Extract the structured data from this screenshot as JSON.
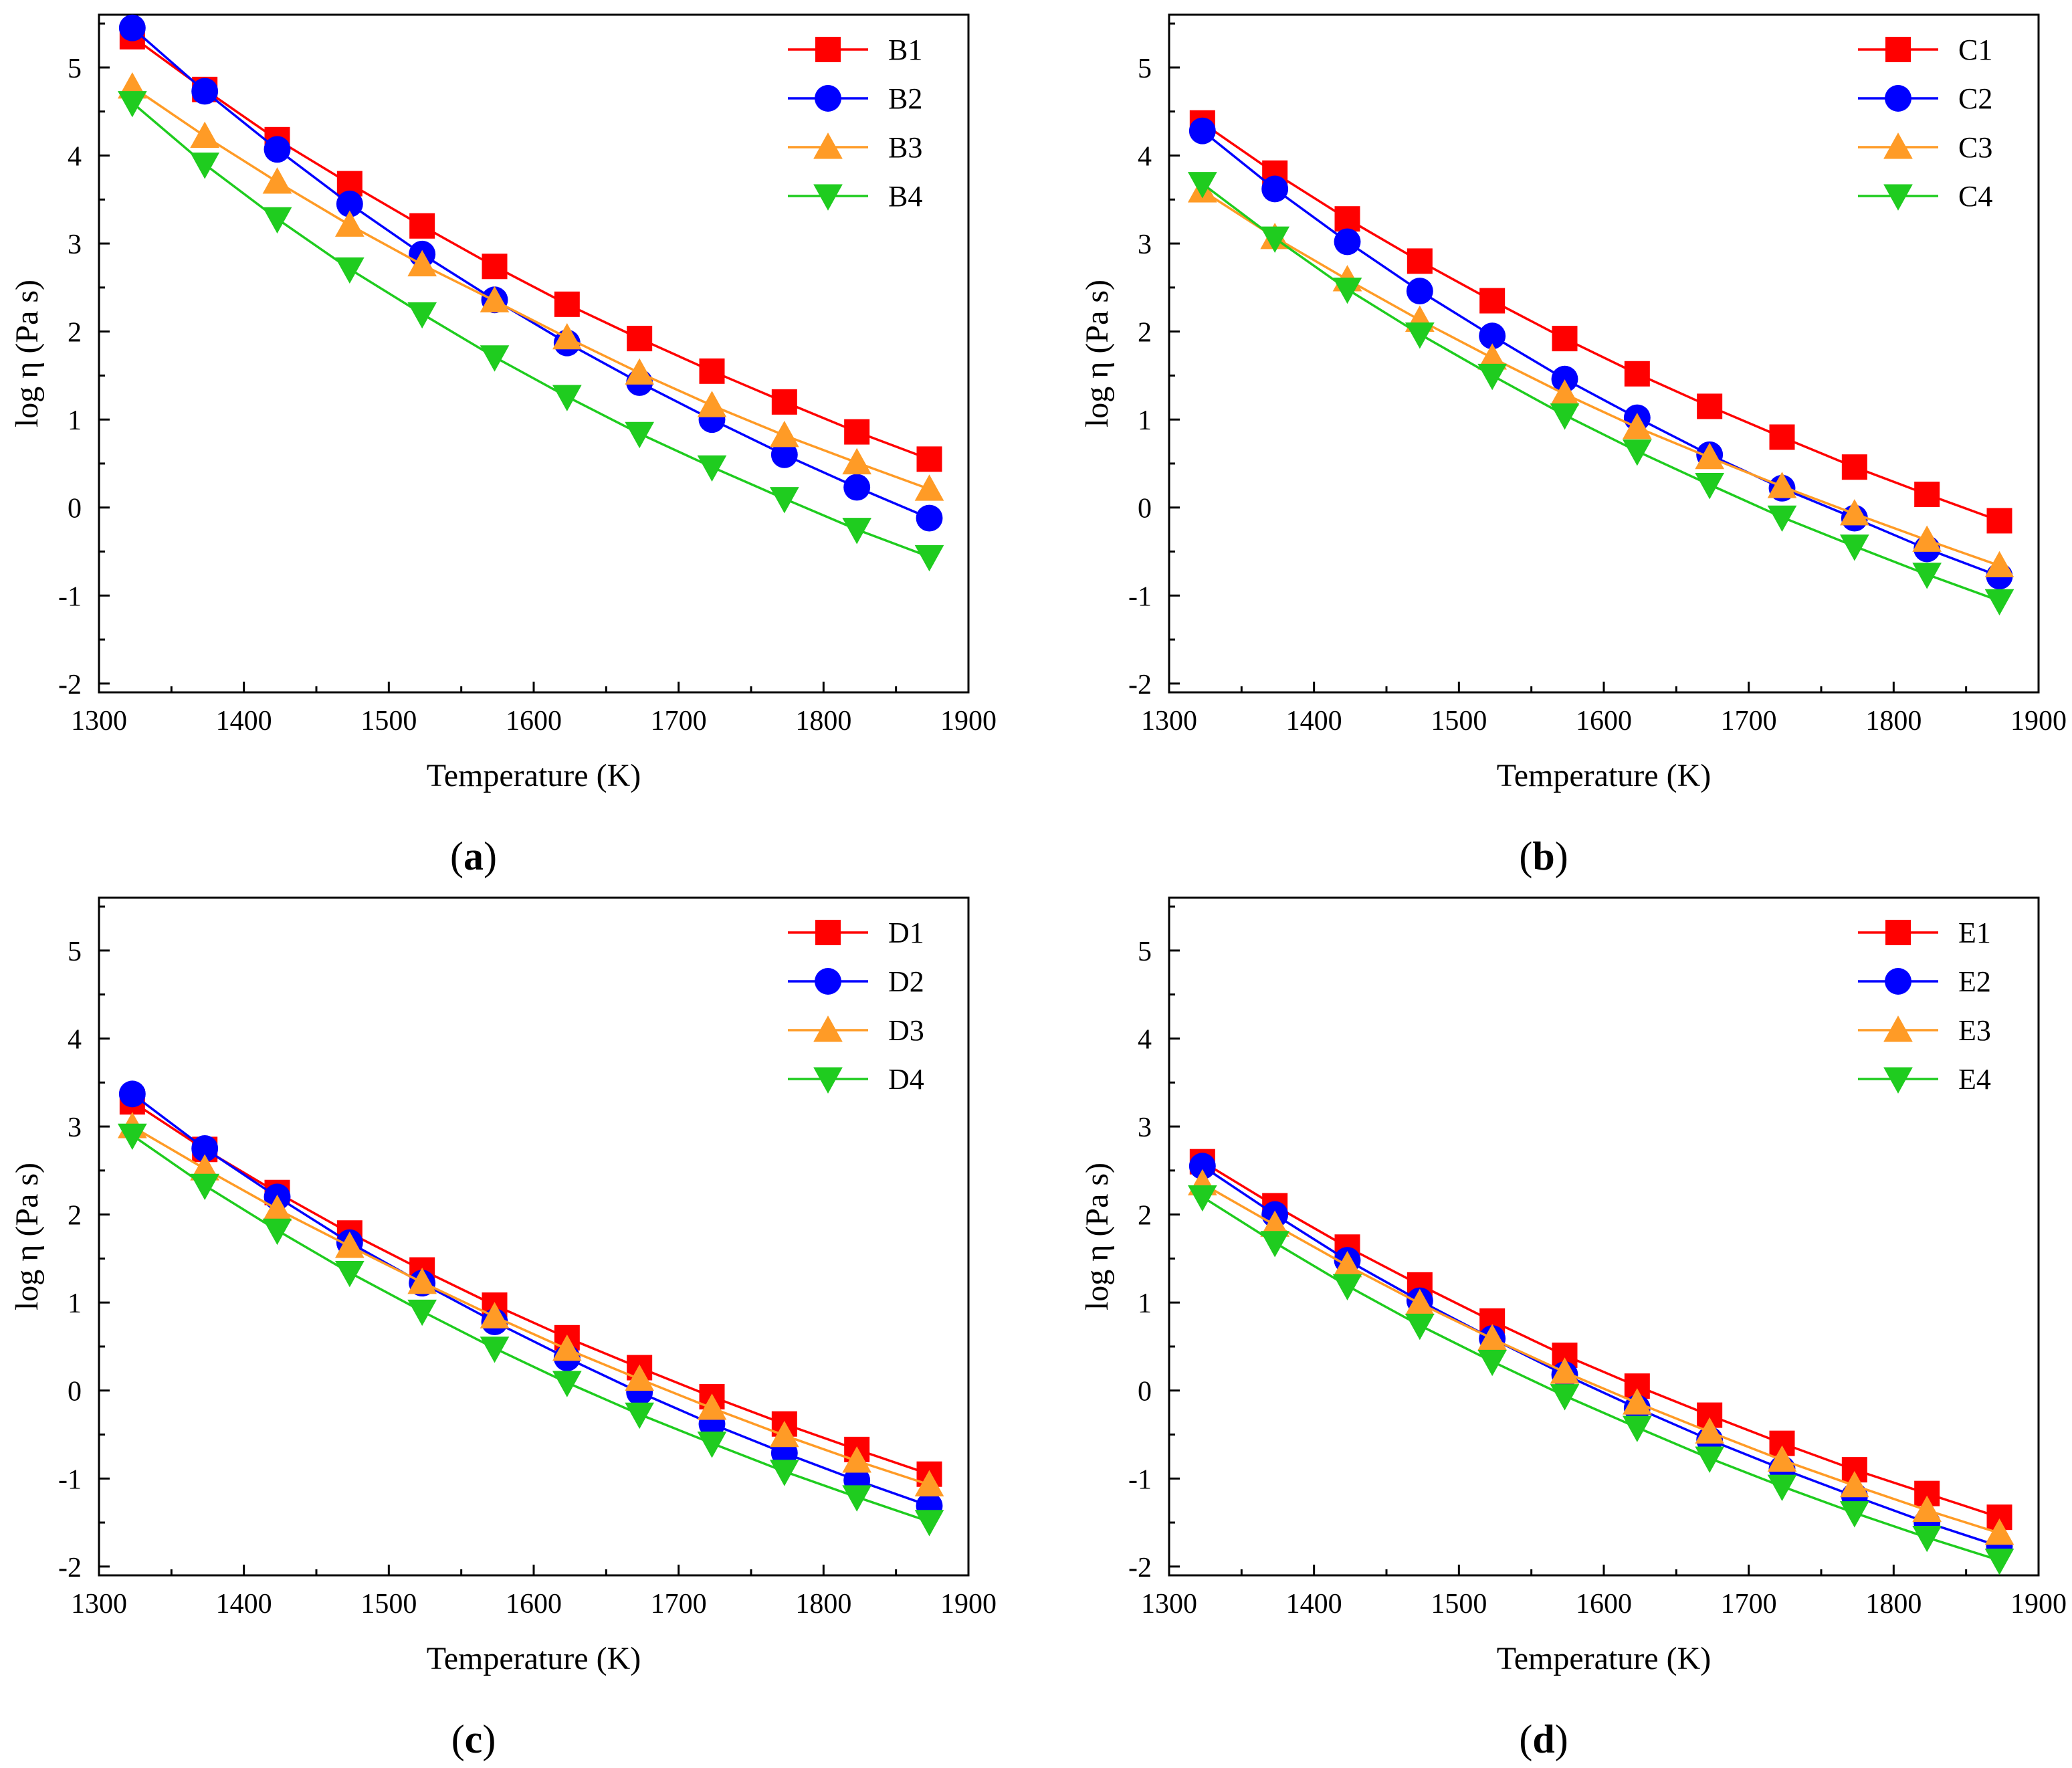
{
  "colors": {
    "red": "#ff0000",
    "blue": "#0000ff",
    "orange": "#ff9b26",
    "green": "#1fcc1f"
  },
  "chart_data": [
    {
      "type": "line",
      "panel_label": "a",
      "xlabel": "Temperature (K)",
      "ylabel": "log η (Pa s)",
      "xlim": [
        1300,
        1900
      ],
      "ylim": [
        -2.1,
        5.6
      ],
      "xticks": [
        1300,
        1400,
        1500,
        1600,
        1700,
        1800,
        1900
      ],
      "yticks": [
        -2,
        -1,
        0,
        1,
        2,
        3,
        4,
        5
      ],
      "x": [
        1323,
        1373,
        1423,
        1473,
        1523,
        1573,
        1623,
        1673,
        1723,
        1773,
        1823,
        1873
      ],
      "legend_position": "top-right",
      "series": [
        {
          "name": "B1",
          "color": "red",
          "marker": "square",
          "values": [
            5.35,
            4.75,
            4.18,
            3.68,
            3.2,
            2.74,
            2.31,
            1.92,
            1.55,
            1.2,
            0.86,
            0.55
          ]
        },
        {
          "name": "B2",
          "color": "blue",
          "marker": "circle",
          "values": [
            5.45,
            4.73,
            4.07,
            3.45,
            2.88,
            2.36,
            1.87,
            1.42,
            1.0,
            0.6,
            0.23,
            -0.12
          ]
        },
        {
          "name": "B3",
          "color": "orange",
          "marker": "triangle-up",
          "values": [
            4.78,
            4.22,
            3.7,
            3.21,
            2.76,
            2.35,
            1.93,
            1.53,
            1.16,
            0.82,
            0.51,
            0.21
          ]
        },
        {
          "name": "B4",
          "color": "green",
          "marker": "triangle-down",
          "values": [
            4.6,
            3.9,
            3.28,
            2.71,
            2.2,
            1.71,
            1.26,
            0.84,
            0.46,
            0.1,
            -0.25,
            -0.56
          ]
        }
      ]
    },
    {
      "type": "line",
      "panel_label": "b",
      "xlabel": "Temperature (K)",
      "ylabel": "log η (Pa s)",
      "xlim": [
        1300,
        1900
      ],
      "ylim": [
        -2.1,
        5.6
      ],
      "xticks": [
        1300,
        1400,
        1500,
        1600,
        1700,
        1800,
        1900
      ],
      "yticks": [
        -2,
        -1,
        0,
        1,
        2,
        3,
        4,
        5
      ],
      "x": [
        1323,
        1373,
        1423,
        1473,
        1523,
        1573,
        1623,
        1673,
        1723,
        1773,
        1823,
        1873
      ],
      "legend_position": "top-right",
      "series": [
        {
          "name": "C1",
          "color": "red",
          "marker": "square",
          "values": [
            4.37,
            3.8,
            3.28,
            2.8,
            2.35,
            1.92,
            1.52,
            1.15,
            0.8,
            0.46,
            0.15,
            -0.15
          ]
        },
        {
          "name": "C2",
          "color": "blue",
          "marker": "circle",
          "values": [
            4.28,
            3.62,
            3.02,
            2.46,
            1.95,
            1.46,
            1.02,
            0.6,
            0.22,
            -0.12,
            -0.47,
            -0.78
          ]
        },
        {
          "name": "C3",
          "color": "orange",
          "marker": "triangle-up",
          "values": [
            3.6,
            3.07,
            2.59,
            2.13,
            1.7,
            1.29,
            0.91,
            0.57,
            0.24,
            -0.07,
            -0.37,
            -0.66
          ]
        },
        {
          "name": "C4",
          "color": "green",
          "marker": "triangle-down",
          "values": [
            3.68,
            3.06,
            2.48,
            1.97,
            1.5,
            1.05,
            0.64,
            0.26,
            -0.11,
            -0.44,
            -0.76,
            -1.06
          ]
        }
      ]
    },
    {
      "type": "line",
      "panel_label": "c",
      "xlabel": "Temperature (K)",
      "ylabel": "log η (Pa s)",
      "xlim": [
        1300,
        1900
      ],
      "ylim": [
        -2.1,
        5.6
      ],
      "xticks": [
        1300,
        1400,
        1500,
        1600,
        1700,
        1800,
        1900
      ],
      "yticks": [
        -2,
        -1,
        0,
        1,
        2,
        3,
        4,
        5
      ],
      "x": [
        1323,
        1373,
        1423,
        1473,
        1523,
        1573,
        1623,
        1673,
        1723,
        1773,
        1823,
        1873
      ],
      "legend_position": "top-right",
      "series": [
        {
          "name": "D1",
          "color": "red",
          "marker": "square",
          "values": [
            3.28,
            2.74,
            2.25,
            1.79,
            1.37,
            0.97,
            0.6,
            0.26,
            -0.07,
            -0.38,
            -0.67,
            -0.95
          ]
        },
        {
          "name": "D2",
          "color": "blue",
          "marker": "circle",
          "values": [
            3.37,
            2.75,
            2.2,
            1.68,
            1.22,
            0.78,
            0.37,
            -0.02,
            -0.38,
            -0.71,
            -1.02,
            -1.31
          ]
        },
        {
          "name": "D3",
          "color": "orange",
          "marker": "triangle-up",
          "values": [
            3.0,
            2.52,
            2.06,
            1.64,
            1.23,
            0.84,
            0.47,
            0.13,
            -0.2,
            -0.51,
            -0.8,
            -1.07
          ]
        },
        {
          "name": "D4",
          "color": "green",
          "marker": "triangle-down",
          "values": [
            2.9,
            2.33,
            1.82,
            1.34,
            0.9,
            0.48,
            0.09,
            -0.27,
            -0.6,
            -0.92,
            -1.21,
            -1.49
          ]
        }
      ]
    },
    {
      "type": "line",
      "panel_label": "d",
      "xlabel": "Temperature (K)",
      "ylabel": "log η (Pa s)",
      "xlim": [
        1300,
        1900
      ],
      "ylim": [
        -2.1,
        5.6
      ],
      "xticks": [
        1300,
        1400,
        1500,
        1600,
        1700,
        1800,
        1900
      ],
      "yticks": [
        -2,
        -1,
        0,
        1,
        2,
        3,
        4,
        5
      ],
      "x": [
        1323,
        1373,
        1423,
        1473,
        1523,
        1573,
        1623,
        1673,
        1723,
        1773,
        1823,
        1873
      ],
      "legend_position": "top-right",
      "series": [
        {
          "name": "E1",
          "color": "red",
          "marker": "square",
          "values": [
            2.6,
            2.1,
            1.63,
            1.2,
            0.79,
            0.4,
            0.05,
            -0.28,
            -0.6,
            -0.9,
            -1.17,
            -1.44
          ]
        },
        {
          "name": "E2",
          "color": "blue",
          "marker": "circle",
          "values": [
            2.55,
            2.0,
            1.48,
            1.02,
            0.59,
            0.18,
            -0.2,
            -0.56,
            -0.89,
            -1.2,
            -1.5,
            -1.77
          ]
        },
        {
          "name": "E3",
          "color": "orange",
          "marker": "triangle-up",
          "values": [
            2.35,
            1.88,
            1.42,
            0.99,
            0.59,
            0.21,
            -0.14,
            -0.47,
            -0.79,
            -1.08,
            -1.36,
            -1.62
          ]
        },
        {
          "name": "E4",
          "color": "green",
          "marker": "triangle-down",
          "values": [
            2.2,
            1.68,
            1.19,
            0.74,
            0.33,
            -0.06,
            -0.42,
            -0.77,
            -1.09,
            -1.39,
            -1.67,
            -1.93
          ]
        }
      ]
    }
  ]
}
